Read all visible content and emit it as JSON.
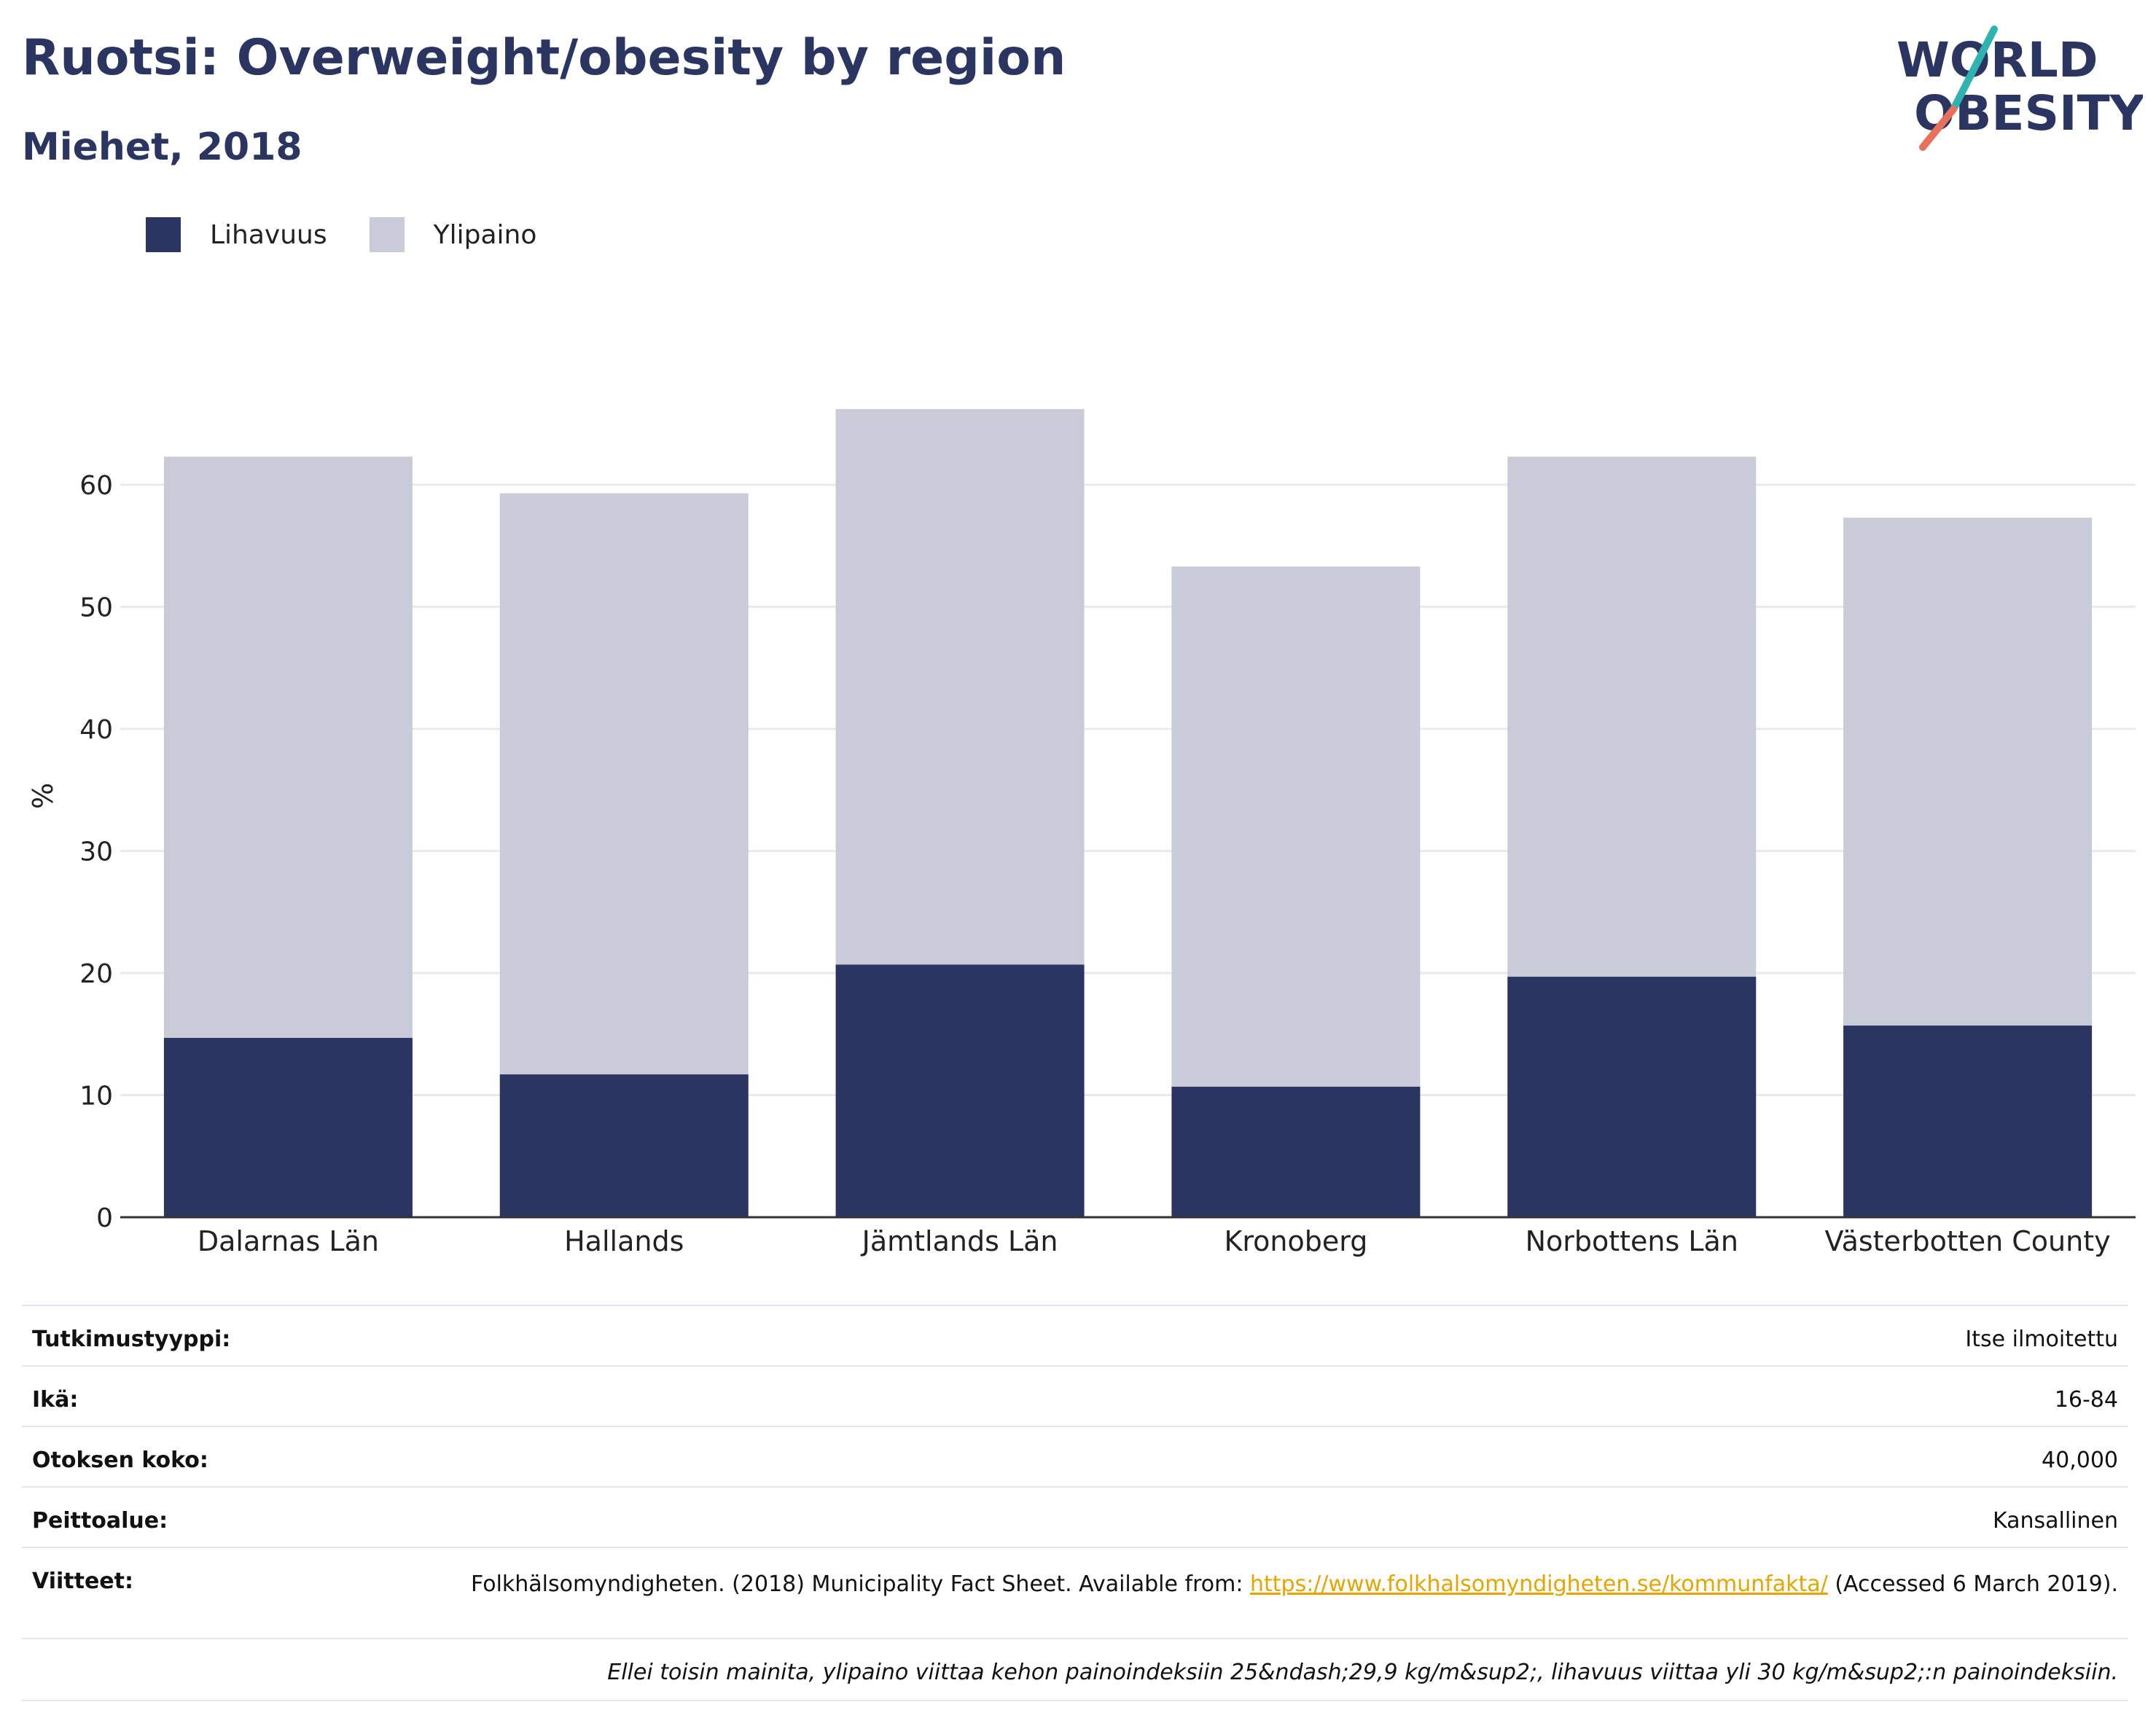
{
  "header": {
    "title": "Ruotsi: Overweight/obesity by region",
    "subtitle": "Miehet, 2018"
  },
  "logo": {
    "line1": "WORLD",
    "line2": "OBESITY"
  },
  "colors": {
    "obesity": "#2a3562",
    "overweight": "#c9ccd8",
    "grid": "#e8eaf0",
    "axis": "#333333",
    "link": "#e8a400"
  },
  "legend": [
    {
      "label": "Lihavuus",
      "color": "#2a3562"
    },
    {
      "label": "Ylipaino",
      "color": "#c9ccd8"
    }
  ],
  "chart_data": {
    "type": "bar",
    "stacked": true,
    "categories": [
      "Dalarnas Län",
      "Hallands",
      "Jämtlands Län",
      "Kronoberg",
      "Norbottens Län",
      "Västerbotten County"
    ],
    "series": [
      {
        "name": "Lihavuus",
        "values": [
          14.7,
          11.7,
          20.7,
          10.7,
          19.7,
          15.7
        ]
      },
      {
        "name": "Ylipaino",
        "values": [
          47.6,
          47.6,
          45.5,
          42.6,
          42.6,
          41.6
        ]
      }
    ],
    "ylabel": "%",
    "ylim": [
      0,
      70
    ],
    "yticks": [
      0,
      10,
      20,
      30,
      40,
      50,
      60
    ],
    "grid": true,
    "legend_position": "top-left"
  },
  "info": {
    "study_type": {
      "label": "Tutkimustyyppi:",
      "value": "Itse ilmoitettu"
    },
    "age": {
      "label": "Ikä:",
      "value": "16-84"
    },
    "sample_size": {
      "label": "Otoksen koko:",
      "value": "40,000"
    },
    "coverage": {
      "label": "Peittoalue:",
      "value": "Kansallinen"
    },
    "references": {
      "label": "Viitteet:",
      "text_before": "Folkhälsomyndigheten. (2018) Municipality Fact Sheet. Available from: ",
      "link": "https://www.folkhalsomyndigheten.se/kommunfakta/",
      "text_after": " (Accessed 6 March 2019)."
    },
    "note": "Ellei toisin mainita, ylipaino viittaa kehon painoindeksiin 25&ndash;29,9 kg/m&sup2;, lihavuus viittaa yli 30 kg/m&sup2;:n painoindeksiin."
  }
}
